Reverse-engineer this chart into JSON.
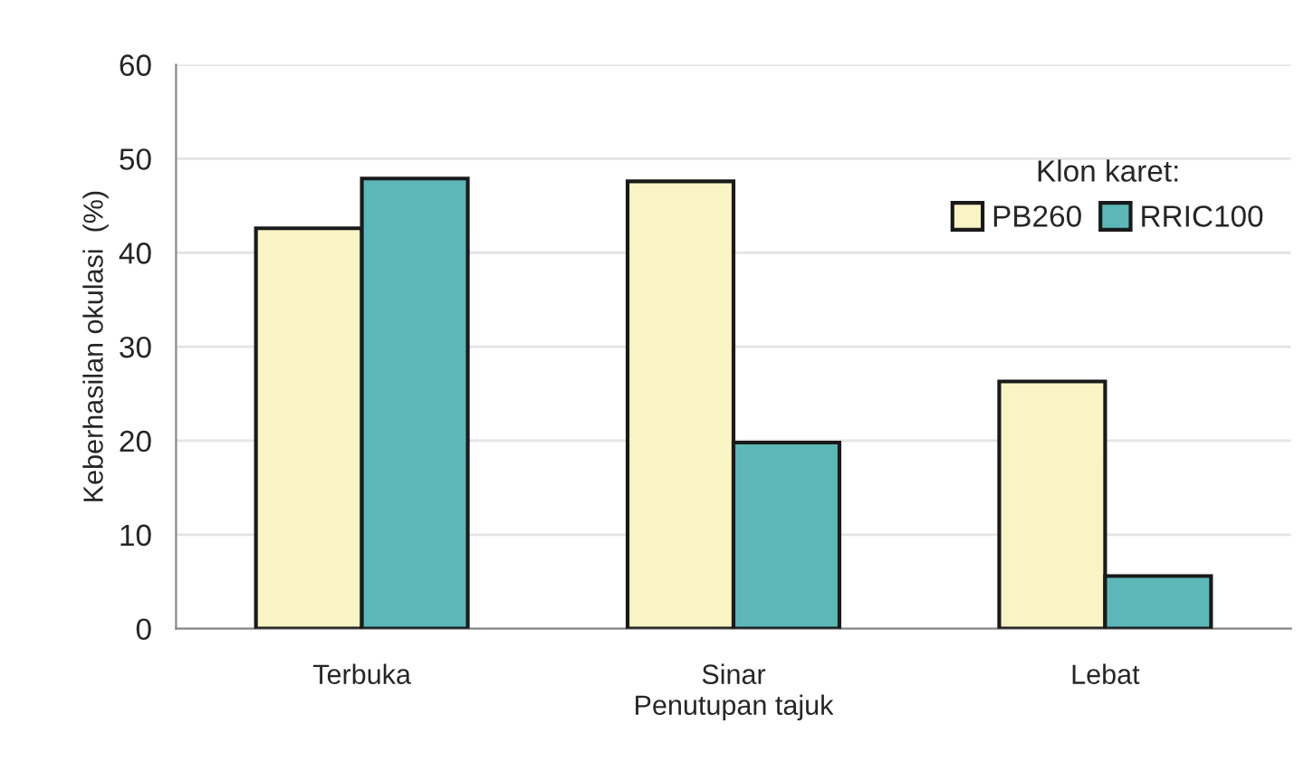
{
  "chart_data": {
    "type": "bar",
    "xlabel": "Penutupan tajuk",
    "ylabel": "Keberhasilan okulasi  (%)",
    "legend_title": "Klon karet:",
    "categories": [
      "Terbuka",
      "Sinar",
      "Lebat"
    ],
    "series": [
      {
        "name": "PB260",
        "color": "#f8f4c4",
        "values": [
          42.6,
          47.6,
          26.3
        ]
      },
      {
        "name": "RRIC100",
        "color": "#5cb8b8",
        "values": [
          47.9,
          19.8,
          5.6
        ]
      }
    ],
    "ylim": [
      0,
      60
    ],
    "yticks": [
      0,
      10,
      20,
      30,
      40,
      50,
      60
    ],
    "grid": "y",
    "legend": "top right"
  }
}
